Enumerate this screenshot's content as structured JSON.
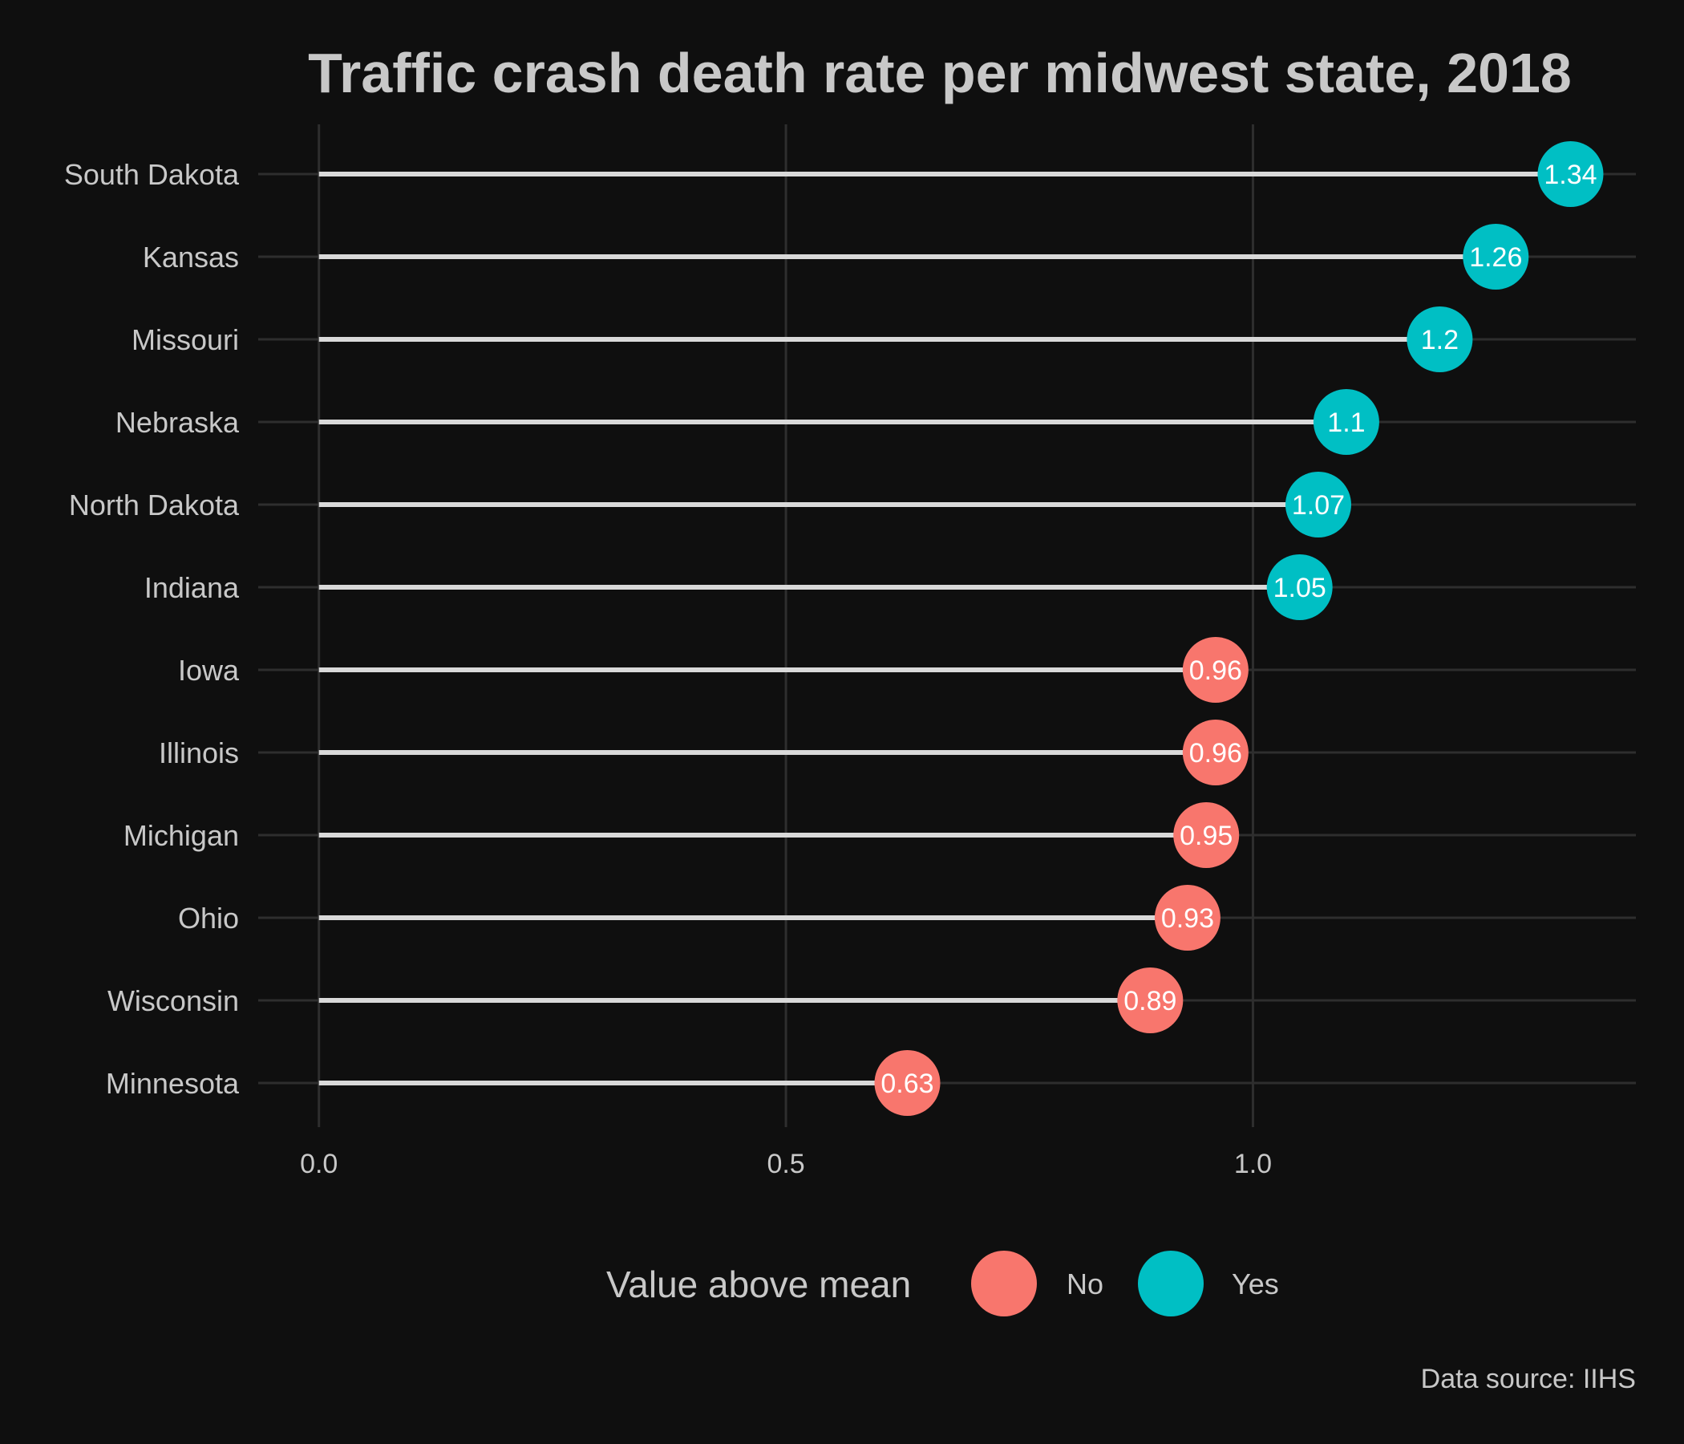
{
  "chart_data": {
    "type": "lollipop",
    "title": "Traffic crash death rate per midwest state, 2018",
    "xlabel": "",
    "ylabel": "",
    "x_ticks": [
      "0.0",
      "0.5",
      "1.0"
    ],
    "x_tick_values": [
      0.0,
      0.5,
      1.0
    ],
    "xlim": [
      -0.065,
      1.41
    ],
    "categories": [
      "South Dakota",
      "Kansas",
      "Missouri",
      "Nebraska",
      "North Dakota",
      "Indiana",
      "Iowa",
      "Illinois",
      "Michigan",
      "Ohio",
      "Wisconsin",
      "Minnesota"
    ],
    "values": [
      1.34,
      1.26,
      1.2,
      1.1,
      1.07,
      1.05,
      0.96,
      0.96,
      0.95,
      0.93,
      0.89,
      0.63
    ],
    "value_labels": [
      "1.34",
      "1.26",
      "1.2",
      "1.1",
      "1.07",
      "1.05",
      "0.96",
      "0.96",
      "0.95",
      "0.93",
      "0.89",
      "0.63"
    ],
    "above_mean": [
      "Yes",
      "Yes",
      "Yes",
      "Yes",
      "Yes",
      "Yes",
      "No",
      "No",
      "No",
      "No",
      "No",
      "No"
    ],
    "legend": {
      "title": "Value above mean",
      "placement": "bottom",
      "entries": [
        {
          "label": "No",
          "color": "#f8766d"
        },
        {
          "label": "Yes",
          "color": "#00bfc4"
        }
      ]
    },
    "caption": "Data source: IIHS",
    "grid": true,
    "colors": {
      "background": "#0f0f0f",
      "grid": "#2e2e2e",
      "stem": "#d9d9d9",
      "text": "#c8c8c8",
      "no": "#f8766d",
      "yes": "#00bfc4"
    }
  }
}
